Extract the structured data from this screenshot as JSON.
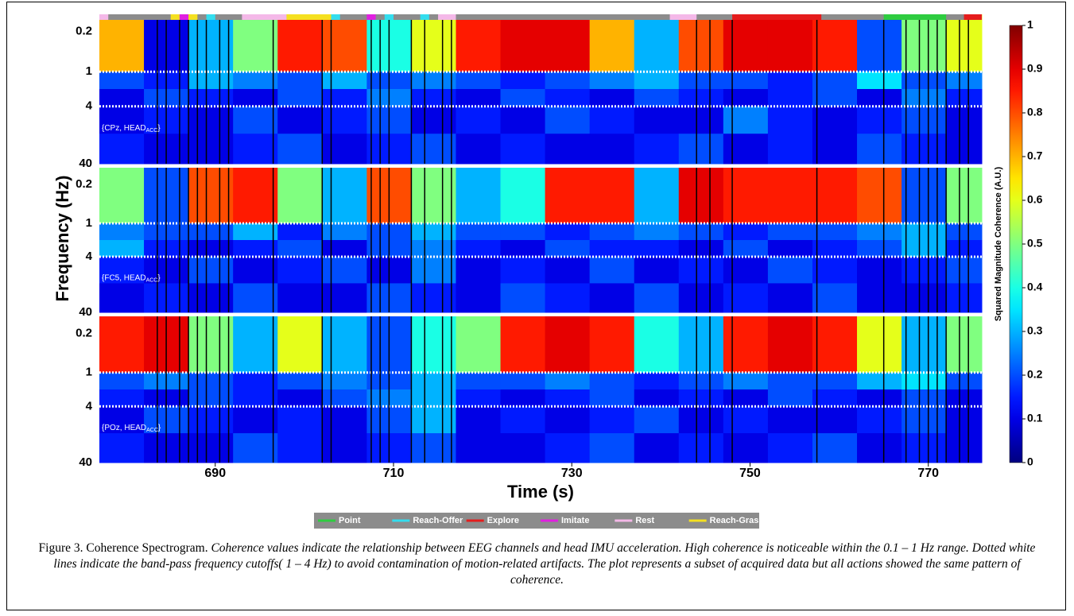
{
  "chart_data": {
    "type": "heatmap",
    "xlabel": "Time (s)",
    "ylabel": "Frequency (Hz)",
    "xlim": [
      677,
      776
    ],
    "xticks": [
      690,
      710,
      730,
      750,
      770
    ],
    "ylim": [
      0.1,
      40
    ],
    "log_scale": true,
    "y_inverted": true,
    "yticks": [
      0.2,
      1,
      4,
      40
    ],
    "x_bins": [
      677,
      682,
      687,
      692,
      697,
      702,
      707,
      712,
      717,
      722,
      727,
      732,
      737,
      742,
      747,
      752,
      757,
      762,
      767,
      772,
      776
    ],
    "y_bins": [
      0.1,
      1,
      2,
      4,
      12,
      40
    ],
    "cutoffs": [
      1,
      4
    ],
    "clim": [
      0,
      1
    ],
    "cticks": [
      0,
      0.1,
      0.2,
      0.3,
      0.4,
      0.5,
      0.6,
      0.7,
      0.8,
      0.9,
      1
    ],
    "colorbar_label": "Squared Magnitude Coherence (A.U.)",
    "colormap": "jet",
    "panels": [
      {
        "label": "{CPz, HEAD",
        "label_sub": "ACC",
        "label_end": "}",
        "values": [
          [
            0.7,
            0.1,
            0.3,
            0.5,
            0.85,
            0.8,
            0.4,
            0.6,
            0.85,
            0.9,
            0.9,
            0.7,
            0.3,
            0.8,
            0.9,
            0.9,
            0.85,
            0.2,
            0.5,
            0.6
          ],
          [
            0.2,
            0.15,
            0.3,
            0.25,
            0.2,
            0.3,
            0.2,
            0.25,
            0.2,
            0.15,
            0.2,
            0.25,
            0.3,
            0.2,
            0.2,
            0.15,
            0.2,
            0.35,
            0.2,
            0.25
          ],
          [
            0.1,
            0.2,
            0.15,
            0.1,
            0.2,
            0.15,
            0.25,
            0.15,
            0.1,
            0.2,
            0.15,
            0.1,
            0.2,
            0.15,
            0.1,
            0.15,
            0.2,
            0.1,
            0.25,
            0.15
          ],
          [
            0.1,
            0.15,
            0.1,
            0.2,
            0.1,
            0.15,
            0.2,
            0.1,
            0.15,
            0.1,
            0.2,
            0.15,
            0.1,
            0.1,
            0.25,
            0.15,
            0.1,
            0.15,
            0.2,
            0.1
          ],
          [
            0.15,
            0.1,
            0.1,
            0.15,
            0.2,
            0.1,
            0.15,
            0.2,
            0.1,
            0.15,
            0.1,
            0.1,
            0.15,
            0.2,
            0.1,
            0.15,
            0.1,
            0.2,
            0.15,
            0.1
          ]
        ]
      },
      {
        "label": "{FC5, HEAD",
        "label_sub": "ACC",
        "label_end": "}",
        "values": [
          [
            0.5,
            0.2,
            0.8,
            0.85,
            0.5,
            0.3,
            0.8,
            0.5,
            0.3,
            0.4,
            0.85,
            0.85,
            0.3,
            0.9,
            0.85,
            0.85,
            0.85,
            0.8,
            0.2,
            0.5
          ],
          [
            0.25,
            0.2,
            0.2,
            0.3,
            0.15,
            0.25,
            0.2,
            0.3,
            0.2,
            0.2,
            0.15,
            0.2,
            0.25,
            0.2,
            0.15,
            0.2,
            0.2,
            0.25,
            0.3,
            0.2
          ],
          [
            0.3,
            0.15,
            0.1,
            0.15,
            0.2,
            0.1,
            0.2,
            0.25,
            0.15,
            0.1,
            0.2,
            0.15,
            0.15,
            0.1,
            0.2,
            0.1,
            0.15,
            0.2,
            0.3,
            0.15
          ],
          [
            0.15,
            0.1,
            0.2,
            0.1,
            0.15,
            0.2,
            0.1,
            0.25,
            0.1,
            0.15,
            0.1,
            0.2,
            0.1,
            0.15,
            0.1,
            0.2,
            0.15,
            0.1,
            0.15,
            0.2
          ],
          [
            0.1,
            0.15,
            0.1,
            0.2,
            0.1,
            0.1,
            0.2,
            0.15,
            0.1,
            0.2,
            0.15,
            0.1,
            0.2,
            0.1,
            0.15,
            0.1,
            0.2,
            0.1,
            0.1,
            0.15
          ]
        ]
      },
      {
        "label": "{POz, HEAD",
        "label_sub": "ACC",
        "label_end": "}",
        "values": [
          [
            0.85,
            0.9,
            0.5,
            0.3,
            0.6,
            0.3,
            0.2,
            0.4,
            0.5,
            0.85,
            0.9,
            0.85,
            0.4,
            0.3,
            0.85,
            0.9,
            0.85,
            0.6,
            0.3,
            0.5
          ],
          [
            0.2,
            0.25,
            0.2,
            0.15,
            0.2,
            0.25,
            0.2,
            0.3,
            0.2,
            0.2,
            0.25,
            0.2,
            0.15,
            0.2,
            0.25,
            0.2,
            0.2,
            0.3,
            0.35,
            0.2
          ],
          [
            0.15,
            0.1,
            0.2,
            0.15,
            0.1,
            0.2,
            0.25,
            0.3,
            0.15,
            0.1,
            0.15,
            0.2,
            0.1,
            0.15,
            0.1,
            0.2,
            0.15,
            0.1,
            0.2,
            0.1
          ],
          [
            0.1,
            0.2,
            0.15,
            0.1,
            0.15,
            0.1,
            0.2,
            0.3,
            0.1,
            0.15,
            0.1,
            0.15,
            0.2,
            0.1,
            0.15,
            0.1,
            0.1,
            0.15,
            0.2,
            0.1
          ],
          [
            0.15,
            0.1,
            0.1,
            0.2,
            0.15,
            0.1,
            0.15,
            0.2,
            0.1,
            0.1,
            0.15,
            0.2,
            0.1,
            0.15,
            0.1,
            0.15,
            0.2,
            0.1,
            0.15,
            0.1
          ]
        ]
      }
    ],
    "event_times": [
      683.5,
      684.5,
      686,
      687,
      688,
      689,
      690.5,
      691.5,
      696.5,
      702,
      703,
      707.5,
      708.5,
      709.5,
      712,
      713.5,
      715.5,
      716.5,
      744,
      745.5,
      748,
      757.5,
      765,
      767.5,
      769,
      770,
      771,
      772,
      773.5,
      774.5
    ],
    "action_bar_color": "#8c8c8c",
    "series": [
      {
        "name": "Point",
        "color": "#2ecc40"
      },
      {
        "name": "Reach-Offer",
        "color": "#33ddee"
      },
      {
        "name": "Explore",
        "color": "#e51c1c"
      },
      {
        "name": "Imitate",
        "color": "#e020e0"
      },
      {
        "name": "Rest",
        "color": "#f4b8e8"
      },
      {
        "name": "Reach-Grasp",
        "color": "#f5e020"
      }
    ],
    "actions": [
      {
        "start": 677,
        "end": 678,
        "action": 4
      },
      {
        "start": 685,
        "end": 686,
        "action": 5
      },
      {
        "start": 686,
        "end": 687,
        "action": 3
      },
      {
        "start": 687,
        "end": 688,
        "action": 5
      },
      {
        "start": 689,
        "end": 690,
        "action": 1
      },
      {
        "start": 693,
        "end": 698,
        "action": 4
      },
      {
        "start": 698,
        "end": 703,
        "action": 5
      },
      {
        "start": 703,
        "end": 704,
        "action": 1
      },
      {
        "start": 707,
        "end": 708,
        "action": 3
      },
      {
        "start": 709,
        "end": 710,
        "action": 1
      },
      {
        "start": 713,
        "end": 714,
        "action": 1
      },
      {
        "start": 715,
        "end": 717,
        "action": 4
      },
      {
        "start": 741,
        "end": 744,
        "action": 4
      },
      {
        "start": 748,
        "end": 758,
        "action": 2
      },
      {
        "start": 765,
        "end": 772,
        "action": 0
      },
      {
        "start": 774,
        "end": 776,
        "action": 2
      }
    ]
  },
  "caption": {
    "label": "Figure 3. Coherence Spectrogram.",
    "text": "Coherence values indicate the relationship between EEG channels and head IMU acceleration. High coherence is noticeable within the 0.1 – 1 Hz range. Dotted white lines indicate the band-pass frequency cutoffs( 1 – 4 Hz) to avoid contamination of motion-related artifacts. The plot represents a subset of acquired data but all actions showed the same pattern of coherence."
  }
}
